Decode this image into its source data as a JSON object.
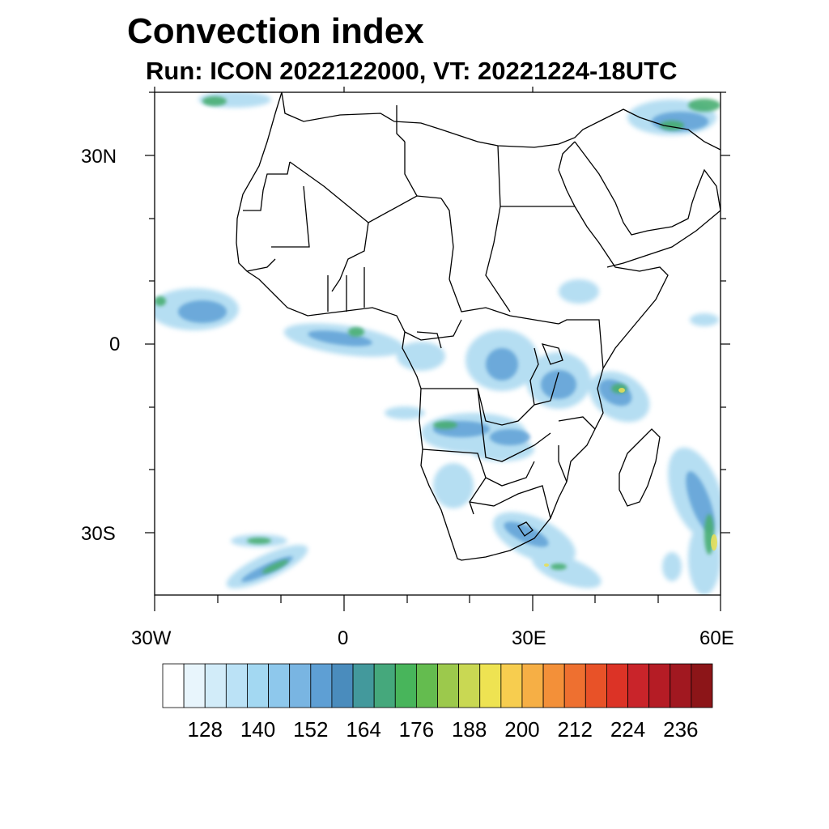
{
  "title": "Convection index",
  "subtitle": "Run: ICON 2022122000,  VT: 20221224-18UTC",
  "axes": {
    "lat_labels": [
      "30N",
      "0",
      "30S"
    ],
    "lon_labels": [
      "30W",
      "0",
      "30E",
      "60E"
    ]
  },
  "colorbar": {
    "colors": [
      "#ffffff",
      "#e8f5fc",
      "#d2ecf9",
      "#bbe2f6",
      "#a3d8f2",
      "#8ec8ec",
      "#79b5e2",
      "#5e9fd4",
      "#4a8cbd",
      "#43999c",
      "#45a87c",
      "#48b55b",
      "#64bc4f",
      "#9cc94c",
      "#c9d853",
      "#eee352",
      "#f7cd4f",
      "#f6af45",
      "#f39039",
      "#ee7030",
      "#e85228",
      "#dc3326",
      "#c9242a",
      "#b51c25",
      "#a11820",
      "#8c1518"
    ],
    "labels": [
      "128",
      "140",
      "152",
      "164",
      "176",
      "188",
      "200",
      "212",
      "224",
      "236"
    ]
  }
}
